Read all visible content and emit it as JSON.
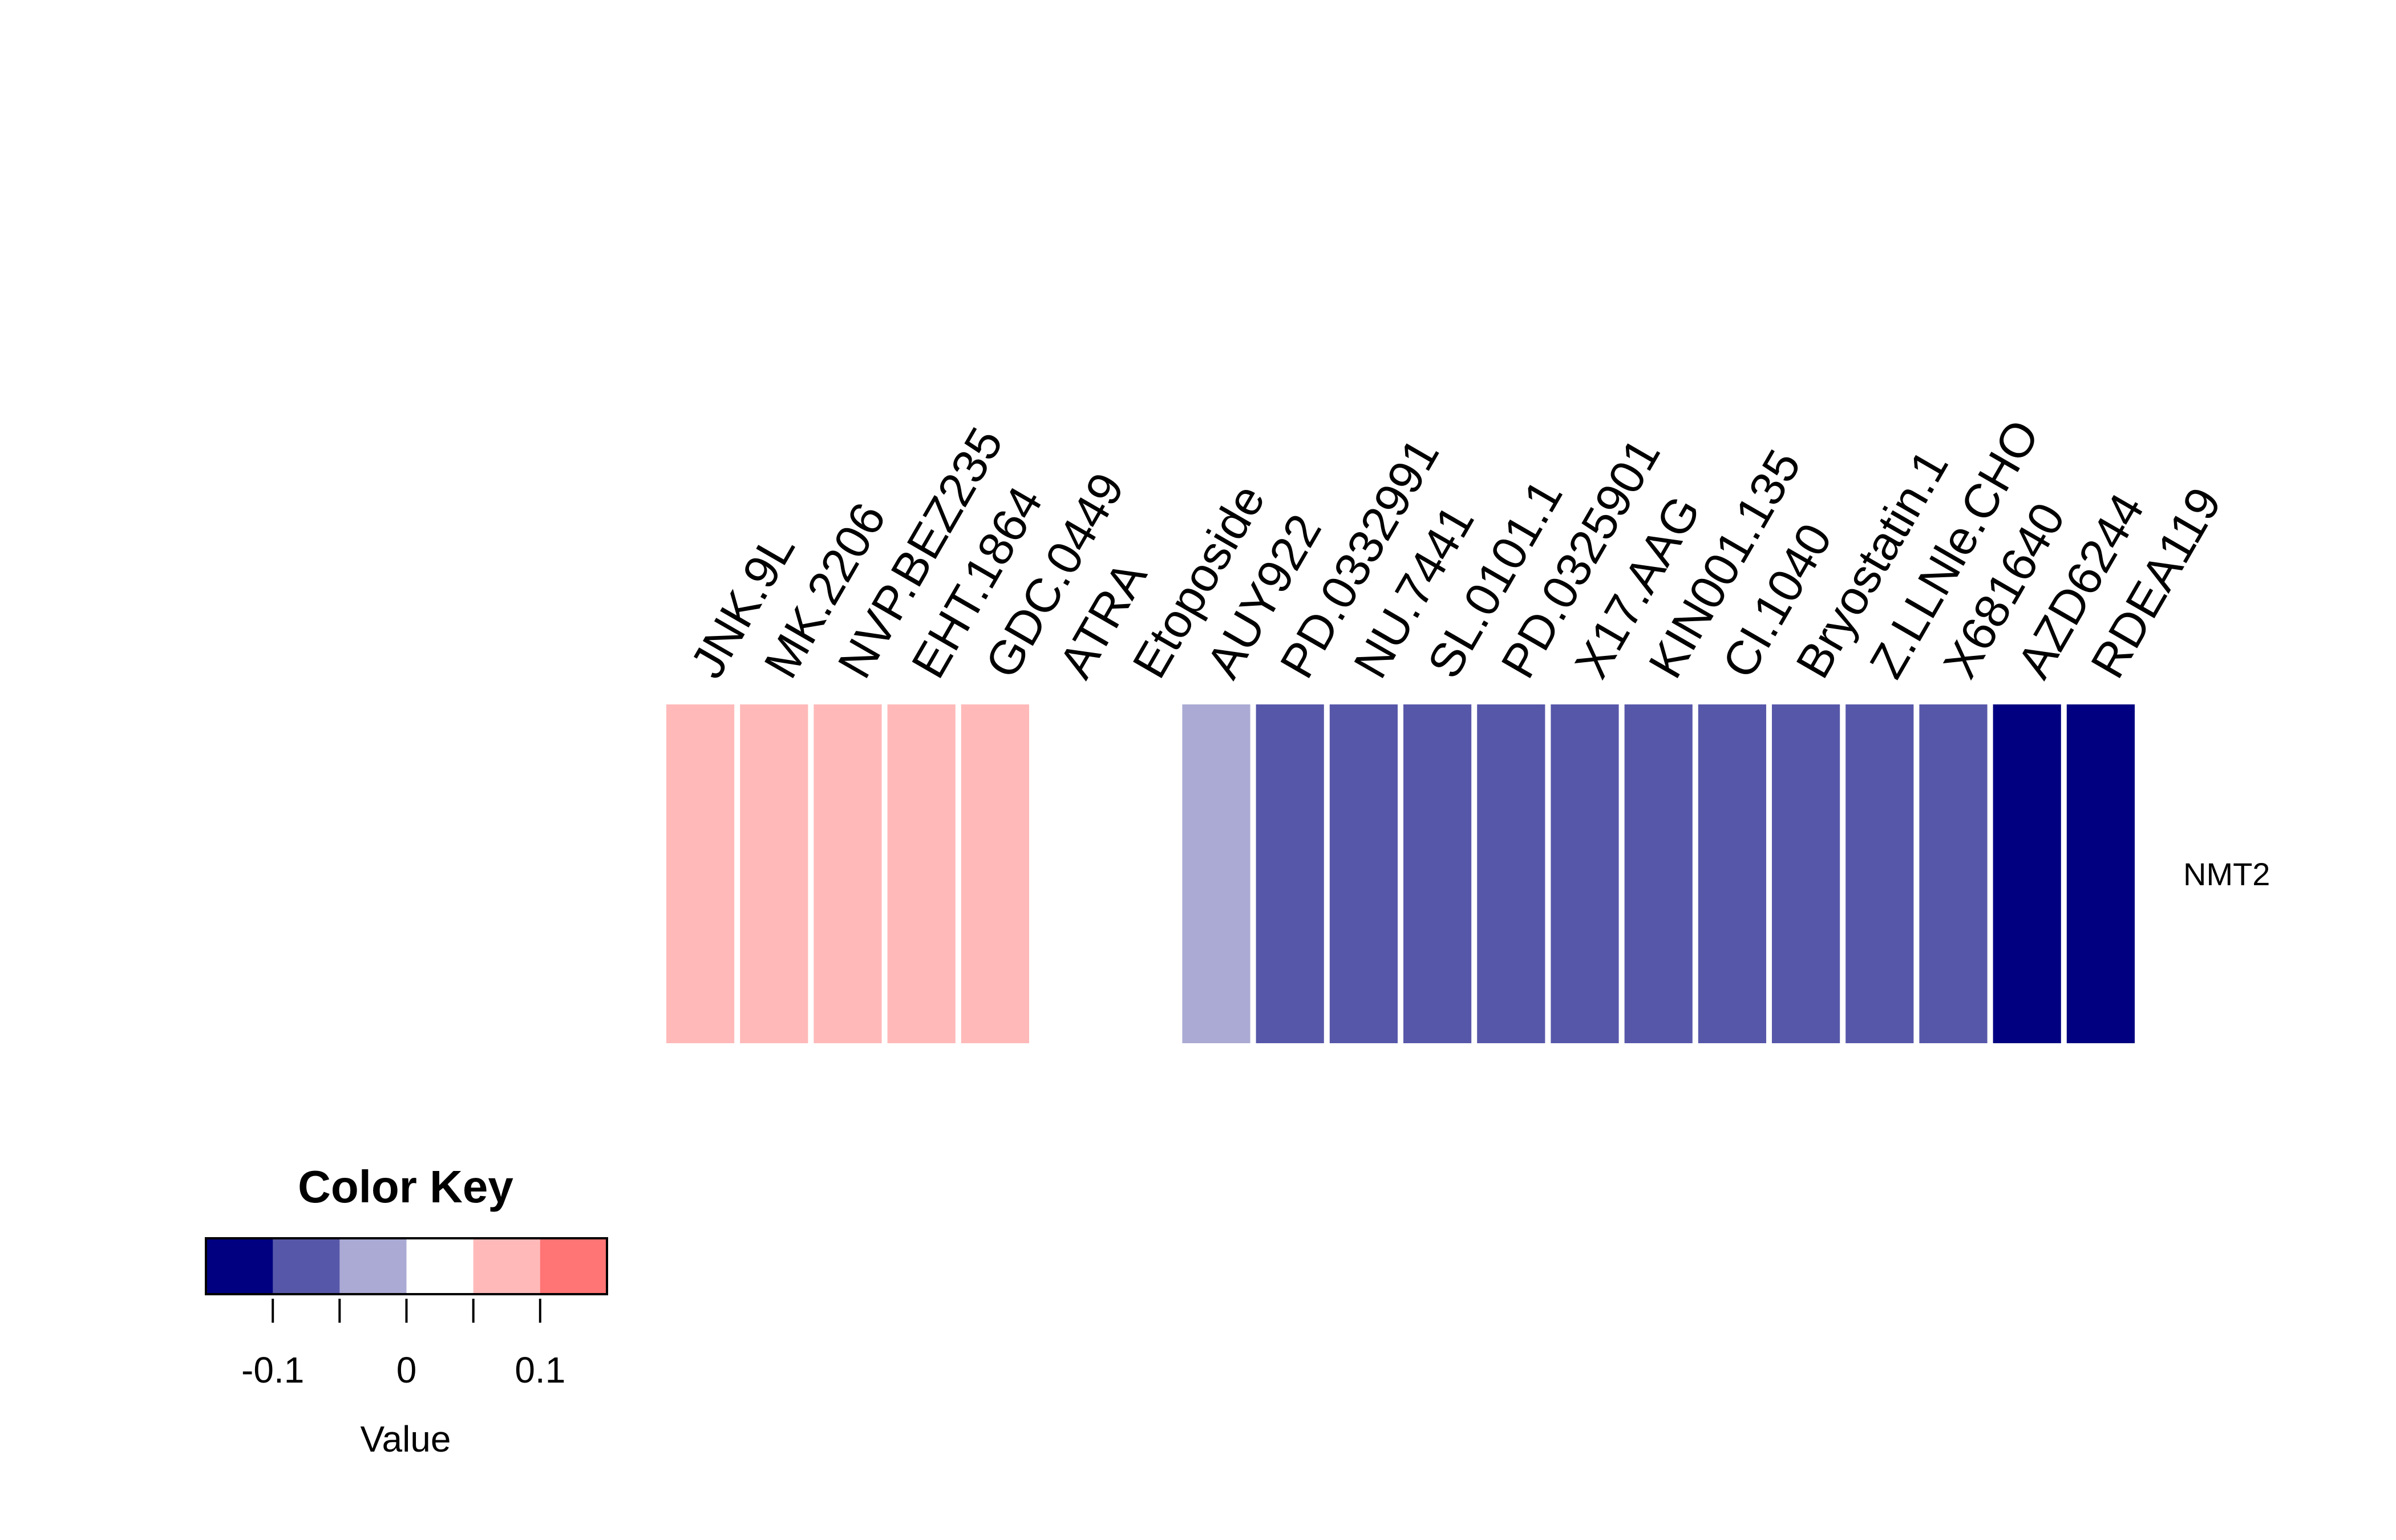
{
  "chart_data": {
    "type": "heatmap",
    "rows": [
      "NMT2"
    ],
    "columns": [
      "JNK.9L",
      "MK.2206",
      "NVP.BEZ235",
      "EHT.1864",
      "GDC.0449",
      "ATRA",
      "Etoposide",
      "AUY922",
      "PD.0332991",
      "NU.7441",
      "SL.0101.1",
      "PD.0325901",
      "X17.AAG",
      "KIN001.135",
      "CI.1040",
      "Bryostatin.1",
      "Z.LLNle.CHO",
      "X681640",
      "AZD6244",
      "RDEA119"
    ],
    "values": [
      [
        0.075,
        0.075,
        0.075,
        0.075,
        0.075,
        0.025,
        0.025,
        -0.025,
        -0.075,
        -0.075,
        -0.075,
        -0.075,
        -0.075,
        -0.075,
        -0.075,
        -0.075,
        -0.075,
        -0.075,
        -0.125,
        -0.125
      ]
    ],
    "color_key": {
      "title": "Color Key",
      "xlabel": "Value",
      "breaks": [
        -0.15,
        -0.1,
        -0.05,
        0,
        0.05,
        0.1,
        0.15
      ],
      "colors": [
        "#000080",
        "#5757AA",
        "#AAAAD4",
        "#FFFFFF",
        "#FFB9B9",
        "#FF7474",
        "#FF3030"
      ],
      "ticks": [
        -0.1,
        -0.05,
        0,
        0.05,
        0.1
      ],
      "tick_labels": [
        "-0.1",
        "",
        "0",
        "",
        "0.1"
      ]
    }
  }
}
